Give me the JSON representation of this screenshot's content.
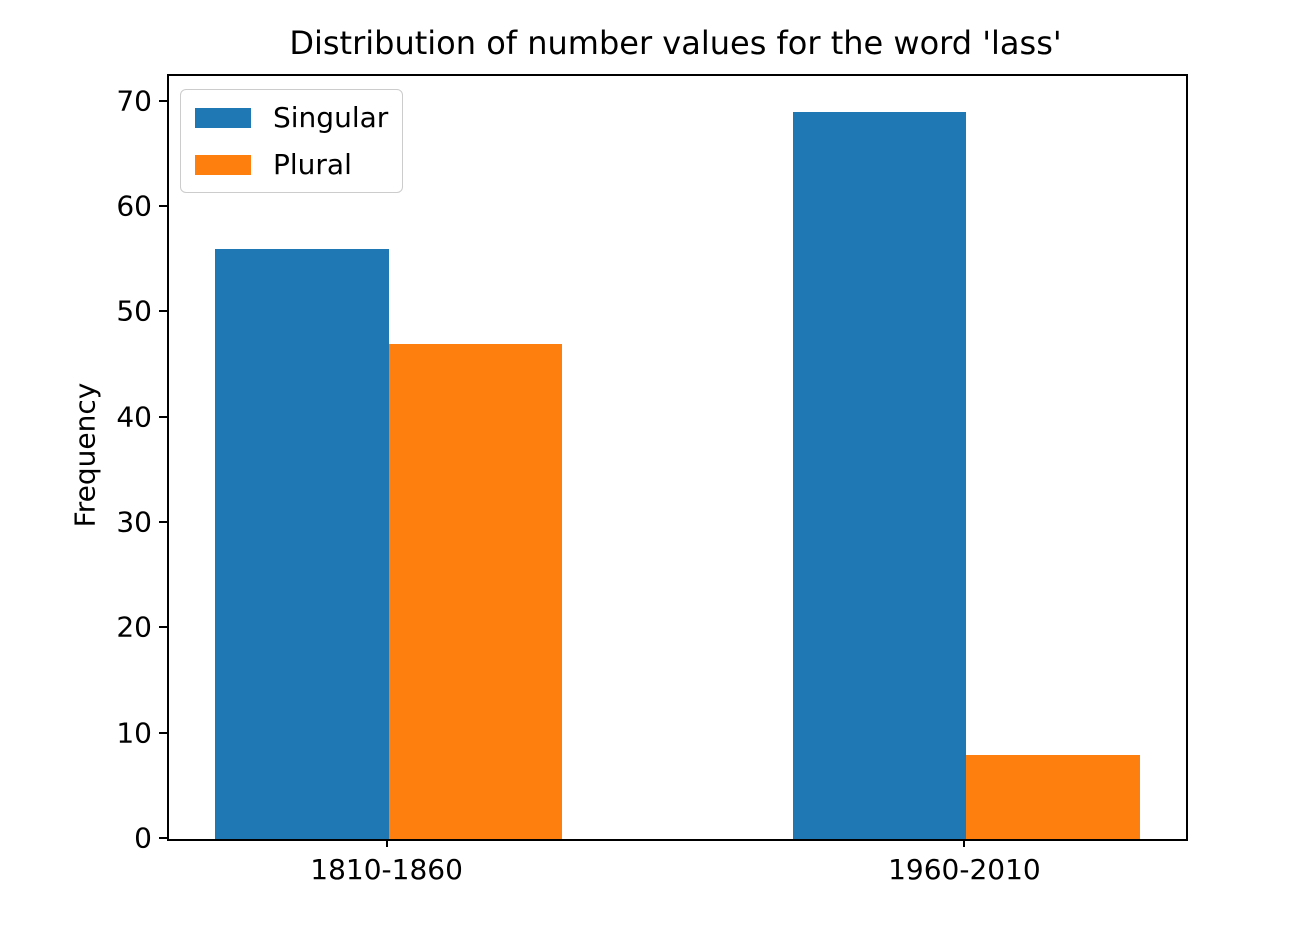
{
  "figure": {
    "title": "Distribution of number values for the word 'lass'",
    "ylabel": "Frequency"
  },
  "chart_data": {
    "type": "bar",
    "title": "Distribution of number values for the word 'lass'",
    "xlabel": "",
    "ylabel": "Frequency",
    "categories": [
      "1810-1860",
      "1960-2010"
    ],
    "series": [
      {
        "name": "Singular",
        "color": "#1f77b4",
        "values": [
          56,
          69
        ]
      },
      {
        "name": "Plural",
        "color": "#ff7f0e",
        "values": [
          47,
          8
        ]
      }
    ],
    "yticks": [
      0,
      10,
      20,
      30,
      40,
      50,
      60,
      70
    ],
    "ylim": [
      0,
      72.45
    ],
    "xlim": [
      -0.38,
      1.38
    ],
    "bar_width": 0.3,
    "grid": false,
    "legend": {
      "position": "upper left",
      "labels": [
        "Singular",
        "Plural"
      ]
    }
  }
}
